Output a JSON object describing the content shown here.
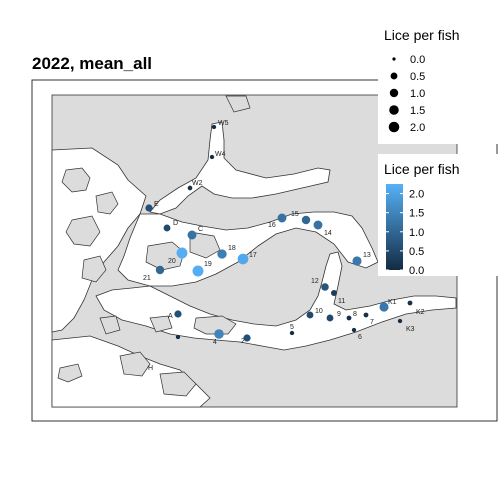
{
  "title": "2022, mean_all",
  "colors": {
    "background": "#ffffff",
    "panel": "#ffffff",
    "land": "#dcdcdc",
    "sea": "#ffffff",
    "coast": "#333333",
    "point_low": "#132B43",
    "point_high": "#56B1F7"
  },
  "size_legend": {
    "title": "Lice per fish",
    "entries": [
      "0.0",
      "0.5",
      "1.0",
      "1.5",
      "2.0"
    ],
    "values": [
      0.0,
      0.5,
      1.0,
      1.5,
      2.0
    ]
  },
  "color_legend": {
    "title": "Lice per fish",
    "ticks": [
      "2.0",
      "1.5",
      "1.0",
      "0.5",
      "0.0"
    ],
    "tick_values": [
      2.0,
      1.5,
      1.0,
      0.5,
      0.0
    ],
    "range": [
      0.0,
      2.25
    ]
  },
  "stations": [
    {
      "label": "W5",
      "lice": 0.05
    },
    {
      "label": "W4",
      "lice": 0.05
    },
    {
      "label": "W2",
      "lice": 0.08
    },
    {
      "label": "E",
      "lice": 0.6
    },
    {
      "label": "D",
      "lice": 0.5
    },
    {
      "label": "C",
      "lice": 1.2
    },
    {
      "label": "15",
      "lice": 1.0
    },
    {
      "label": "16",
      "lice": 1.2
    },
    {
      "label": "14",
      "lice": 1.2
    },
    {
      "label": "20",
      "lice": 2.2
    },
    {
      "label": "18",
      "lice": 1.4
    },
    {
      "label": "19",
      "lice": 2.2
    },
    {
      "label": "21",
      "lice": 1.0
    },
    {
      "label": "17",
      "lice": 2.1
    },
    {
      "label": "13",
      "lice": 1.3
    },
    {
      "label": "12",
      "lice": 0.7
    },
    {
      "label": "11",
      "lice": 0.3
    },
    {
      "label": "10",
      "lice": 0.5
    },
    {
      "label": "9",
      "lice": 0.5
    },
    {
      "label": "8",
      "lice": 0.1
    },
    {
      "label": "7",
      "lice": 0.1
    },
    {
      "label": "K1",
      "lice": 1.3
    },
    {
      "label": "K2",
      "lice": 0.1
    },
    {
      "label": "K3",
      "lice": 0.05
    },
    {
      "label": "6",
      "lice": 0.05
    },
    {
      "label": "5",
      "lice": 0.05
    },
    {
      "label": "A",
      "lice": 0.6
    },
    {
      "label": "4",
      "lice": 1.5
    },
    {
      "label": "2",
      "lice": 0.6
    },
    {
      "label": "H",
      "lice": 0.05
    }
  ]
}
